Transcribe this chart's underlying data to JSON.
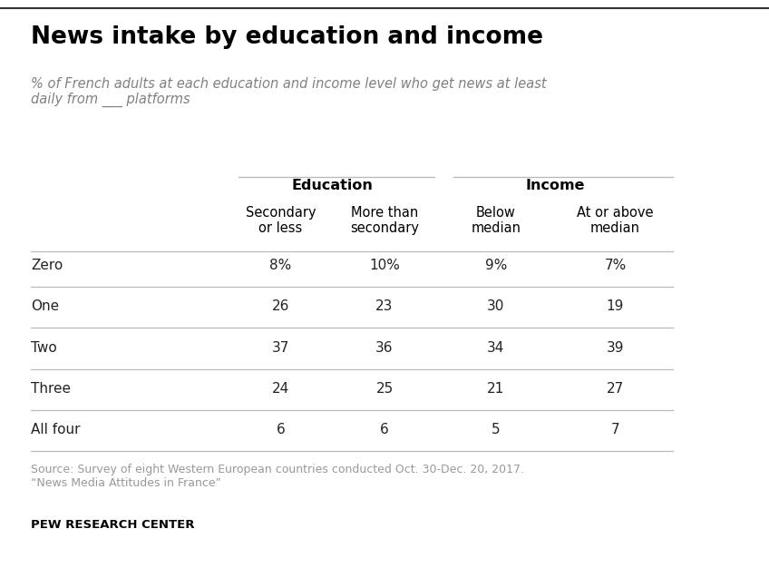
{
  "title": "News intake by education and income",
  "subtitle": "% of French adults at each education and income level who get news at least\ndaily from ___ platforms",
  "group_headers": [
    "Education",
    "Income"
  ],
  "col_headers": [
    "Secondary\nor less",
    "More than\nsecondary",
    "Below\nmedian",
    "At or above\nmedian"
  ],
  "row_labels": [
    "Zero",
    "One",
    "Two",
    "Three",
    "All four"
  ],
  "data": [
    [
      "8%",
      "10%",
      "9%",
      "7%"
    ],
    [
      "26",
      "23",
      "30",
      "19"
    ],
    [
      "37",
      "36",
      "34",
      "39"
    ],
    [
      "24",
      "25",
      "21",
      "27"
    ],
    [
      "6",
      "6",
      "5",
      "7"
    ]
  ],
  "source_text": "Source: Survey of eight Western European countries conducted Oct. 30-Dec. 20, 2017.\n“News Media Attitudes in France”",
  "footer_text": "PEW RESEARCH CENTER",
  "background_color": "#ffffff",
  "title_color": "#000000",
  "subtitle_color": "#808080",
  "header_color": "#000000",
  "data_color": "#222222",
  "source_color": "#999999",
  "footer_color": "#000000",
  "line_color": "#bbbbbb",
  "top_line_color": "#333333"
}
